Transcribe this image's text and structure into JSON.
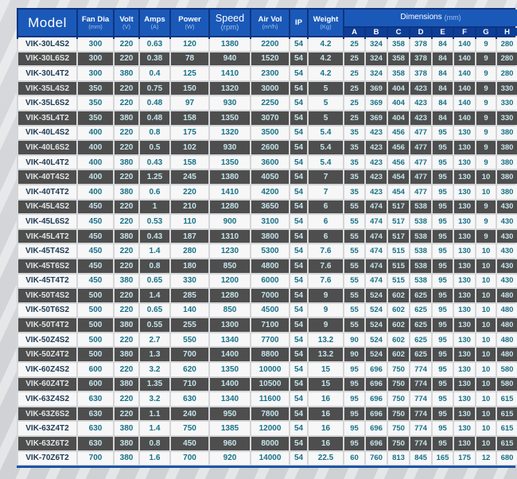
{
  "header": {
    "model_label": "Model",
    "columns": [
      {
        "label": "Fan Dia",
        "unit": "(mm)"
      },
      {
        "label": "Volt",
        "unit": "(V)"
      },
      {
        "label": "Amps",
        "unit": "(A)"
      },
      {
        "label": "Power",
        "unit": "(W)"
      },
      {
        "label": "Speed",
        "unit": "(rpm)"
      },
      {
        "label": "Air Vol",
        "unit": "(m³/h)"
      },
      {
        "label": "IP",
        "unit": ""
      },
      {
        "label": "Weight",
        "unit": "(Kg)"
      }
    ],
    "dimensions": {
      "label": "Dimensions",
      "unit": "(mm)",
      "letters": [
        "A",
        "B",
        "C",
        "D",
        "E",
        "F",
        "G",
        "H"
      ]
    }
  },
  "rows": [
    {
      "model": "VIK-30L4S2",
      "values": [
        "300",
        "220",
        "0.63",
        "120",
        "1380",
        "2200",
        "54",
        "4.2"
      ],
      "dims": [
        "25",
        "324",
        "358",
        "378",
        "84",
        "140",
        "9",
        "280"
      ]
    },
    {
      "model": "VIK-30L6S2",
      "values": [
        "300",
        "220",
        "0.38",
        "78",
        "940",
        "1520",
        "54",
        "4.2"
      ],
      "dims": [
        "25",
        "324",
        "358",
        "378",
        "84",
        "140",
        "9",
        "280"
      ]
    },
    {
      "model": "VIK-30L4T2",
      "values": [
        "300",
        "380",
        "0.4",
        "125",
        "1410",
        "2300",
        "54",
        "4.2"
      ],
      "dims": [
        "25",
        "324",
        "358",
        "378",
        "84",
        "140",
        "9",
        "280"
      ]
    },
    {
      "model": "VIK-35L4S2",
      "values": [
        "350",
        "220",
        "0.75",
        "150",
        "1320",
        "3000",
        "54",
        "5"
      ],
      "dims": [
        "25",
        "369",
        "404",
        "423",
        "84",
        "140",
        "9",
        "330"
      ]
    },
    {
      "model": "VIK-35L6S2",
      "values": [
        "350",
        "220",
        "0.48",
        "97",
        "930",
        "2250",
        "54",
        "5"
      ],
      "dims": [
        "25",
        "369",
        "404",
        "423",
        "84",
        "140",
        "9",
        "330"
      ]
    },
    {
      "model": "VIK-35L4T2",
      "values": [
        "350",
        "380",
        "0.48",
        "158",
        "1350",
        "3070",
        "54",
        "5"
      ],
      "dims": [
        "25",
        "369",
        "404",
        "423",
        "84",
        "140",
        "9",
        "330"
      ]
    },
    {
      "model": "VIK-40L4S2",
      "values": [
        "400",
        "220",
        "0.8",
        "175",
        "1320",
        "3500",
        "54",
        "5.4"
      ],
      "dims": [
        "35",
        "423",
        "456",
        "477",
        "95",
        "130",
        "9",
        "380"
      ]
    },
    {
      "model": "VIK-40L6S2",
      "values": [
        "400",
        "220",
        "0.5",
        "102",
        "930",
        "2600",
        "54",
        "5.4"
      ],
      "dims": [
        "35",
        "423",
        "456",
        "477",
        "95",
        "130",
        "9",
        "380"
      ]
    },
    {
      "model": "VIK-40L4T2",
      "values": [
        "400",
        "380",
        "0.43",
        "158",
        "1350",
        "3600",
        "54",
        "5.4"
      ],
      "dims": [
        "35",
        "423",
        "456",
        "477",
        "95",
        "130",
        "9",
        "380"
      ]
    },
    {
      "model": "VIK-40T4S2",
      "values": [
        "400",
        "220",
        "1.25",
        "245",
        "1380",
        "4050",
        "54",
        "7"
      ],
      "dims": [
        "35",
        "423",
        "454",
        "477",
        "95",
        "130",
        "10",
        "380"
      ]
    },
    {
      "model": "VIK-40T4T2",
      "values": [
        "400",
        "380",
        "0.6",
        "220",
        "1410",
        "4200",
        "54",
        "7"
      ],
      "dims": [
        "35",
        "423",
        "454",
        "477",
        "95",
        "130",
        "10",
        "380"
      ]
    },
    {
      "model": "VIK-45L4S2",
      "values": [
        "450",
        "220",
        "1",
        "210",
        "1280",
        "3650",
        "54",
        "6"
      ],
      "dims": [
        "55",
        "474",
        "517",
        "538",
        "95",
        "130",
        "9",
        "430"
      ]
    },
    {
      "model": "VIK-45L6S2",
      "values": [
        "450",
        "220",
        "0.53",
        "110",
        "900",
        "3100",
        "54",
        "6"
      ],
      "dims": [
        "55",
        "474",
        "517",
        "538",
        "95",
        "130",
        "9",
        "430"
      ]
    },
    {
      "model": "VIK-45L4T2",
      "values": [
        "450",
        "380",
        "0.43",
        "187",
        "1310",
        "3800",
        "54",
        "6"
      ],
      "dims": [
        "55",
        "474",
        "517",
        "538",
        "95",
        "130",
        "9",
        "430"
      ]
    },
    {
      "model": "VIK-45T4S2",
      "values": [
        "450",
        "220",
        "1.4",
        "280",
        "1230",
        "5300",
        "54",
        "7.6"
      ],
      "dims": [
        "55",
        "474",
        "515",
        "538",
        "95",
        "130",
        "10",
        "430"
      ]
    },
    {
      "model": "VIK-45T6S2",
      "values": [
        "450",
        "220",
        "0.8",
        "180",
        "850",
        "4800",
        "54",
        "7.6"
      ],
      "dims": [
        "55",
        "474",
        "515",
        "538",
        "95",
        "130",
        "10",
        "430"
      ]
    },
    {
      "model": "VIK-45T4T2",
      "values": [
        "450",
        "380",
        "0.65",
        "330",
        "1200",
        "6000",
        "54",
        "7.6"
      ],
      "dims": [
        "55",
        "474",
        "515",
        "538",
        "95",
        "130",
        "10",
        "430"
      ]
    },
    {
      "model": "VIK-50T4S2",
      "values": [
        "500",
        "220",
        "1.4",
        "285",
        "1280",
        "7000",
        "54",
        "9"
      ],
      "dims": [
        "55",
        "524",
        "602",
        "625",
        "95",
        "130",
        "10",
        "480"
      ]
    },
    {
      "model": "VIK-50T6S2",
      "values": [
        "500",
        "220",
        "0.65",
        "140",
        "850",
        "4500",
        "54",
        "9"
      ],
      "dims": [
        "55",
        "524",
        "602",
        "625",
        "95",
        "130",
        "10",
        "480"
      ]
    },
    {
      "model": "VIK-50T4T2",
      "values": [
        "500",
        "380",
        "0.55",
        "255",
        "1300",
        "7100",
        "54",
        "9"
      ],
      "dims": [
        "55",
        "524",
        "602",
        "625",
        "95",
        "130",
        "10",
        "480"
      ]
    },
    {
      "model": "VIK-50Z4S2",
      "values": [
        "500",
        "220",
        "2.7",
        "550",
        "1340",
        "7700",
        "54",
        "13.2"
      ],
      "dims": [
        "90",
        "524",
        "602",
        "625",
        "95",
        "130",
        "10",
        "480"
      ]
    },
    {
      "model": "VIK-50Z4T2",
      "values": [
        "500",
        "380",
        "1.3",
        "700",
        "1400",
        "8800",
        "54",
        "13.2"
      ],
      "dims": [
        "90",
        "524",
        "602",
        "625",
        "95",
        "130",
        "10",
        "480"
      ]
    },
    {
      "model": "VIK-60Z4S2",
      "values": [
        "600",
        "220",
        "3.2",
        "620",
        "1350",
        "10000",
        "54",
        "15"
      ],
      "dims": [
        "95",
        "696",
        "750",
        "774",
        "95",
        "130",
        "10",
        "580"
      ]
    },
    {
      "model": "VIK-60Z4T2",
      "values": [
        "600",
        "380",
        "1.35",
        "710",
        "1400",
        "10500",
        "54",
        "15"
      ],
      "dims": [
        "95",
        "696",
        "750",
        "774",
        "95",
        "130",
        "10",
        "580"
      ]
    },
    {
      "model": "VIK-63Z4S2",
      "values": [
        "630",
        "220",
        "3.2",
        "630",
        "1340",
        "11600",
        "54",
        "16"
      ],
      "dims": [
        "95",
        "696",
        "750",
        "774",
        "95",
        "130",
        "10",
        "615"
      ]
    },
    {
      "model": "VIK-63Z6S2",
      "values": [
        "630",
        "220",
        "1.1",
        "240",
        "950",
        "7800",
        "54",
        "16"
      ],
      "dims": [
        "95",
        "696",
        "750",
        "774",
        "95",
        "130",
        "10",
        "615"
      ]
    },
    {
      "model": "VIK-63Z4T2",
      "values": [
        "630",
        "380",
        "1.4",
        "750",
        "1385",
        "12000",
        "54",
        "16"
      ],
      "dims": [
        "95",
        "696",
        "750",
        "774",
        "95",
        "130",
        "10",
        "615"
      ]
    },
    {
      "model": "VIK-63Z6T2",
      "values": [
        "630",
        "380",
        "0.8",
        "450",
        "960",
        "8000",
        "54",
        "16"
      ],
      "dims": [
        "95",
        "696",
        "750",
        "774",
        "95",
        "130",
        "10",
        "615"
      ]
    },
    {
      "model": "VIK-70Z6T2",
      "values": [
        "700",
        "380",
        "1.6",
        "700",
        "920",
        "14000",
        "54",
        "22.5"
      ],
      "dims": [
        "60",
        "760",
        "813",
        "845",
        "165",
        "175",
        "12",
        "680"
      ]
    }
  ],
  "colors": {
    "header_blue": "#1b59b8",
    "header_letter_band": "#0e3d96",
    "header_unit_text": "#9dc2f0",
    "row_light_bg": "#f7f7f8",
    "row_dark_bg": "#4e4e4e",
    "value_teal": "#177186",
    "value_teal_on_dark": "#c6e5ec",
    "bottom_rule_blue": "#1a4f9c"
  }
}
